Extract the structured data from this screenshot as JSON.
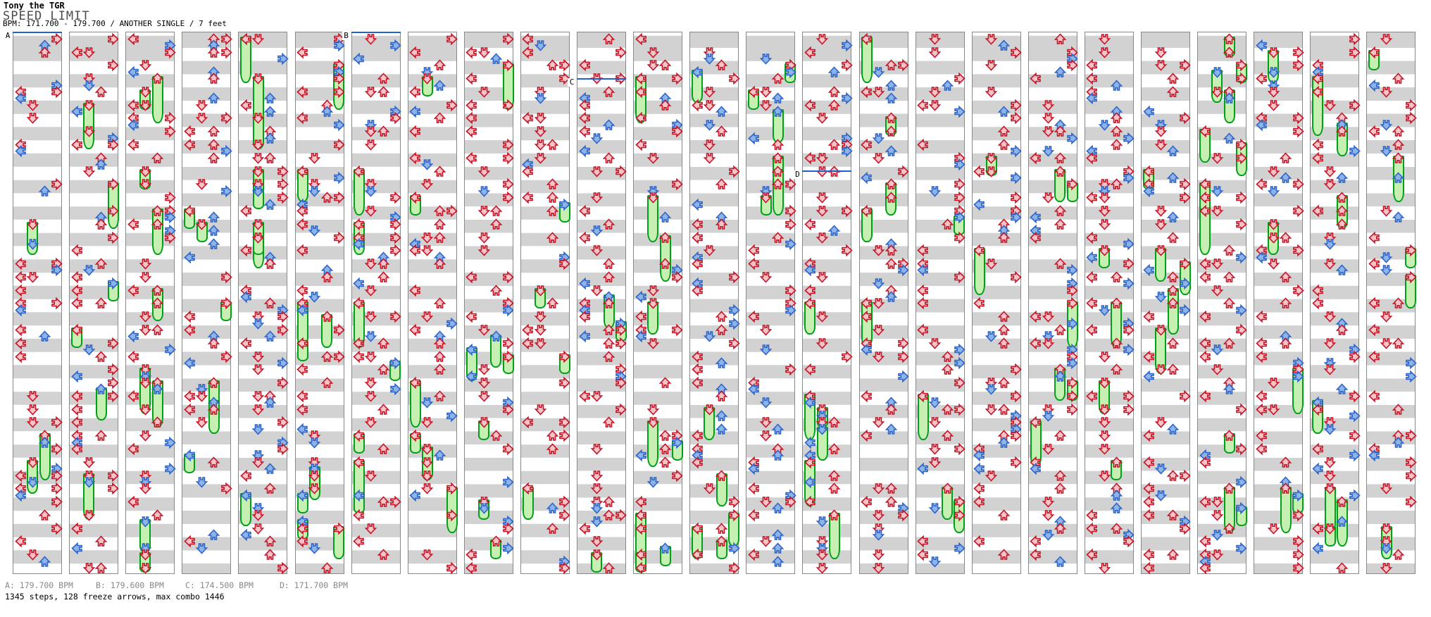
{
  "header": {
    "author": "Tony the TGR",
    "title": "SPEED LIMIT",
    "bpm_line": "BPM: 171.700 - 179.700 / ANOTHER SINGLE / 7 feet"
  },
  "footer": {
    "bpm_markers": [
      {
        "label": "A: 179.700 BPM"
      },
      {
        "label": "B: 179.600 BPM"
      },
      {
        "label": "C: 174.500 BPM"
      },
      {
        "label": "D: 171.700 BPM"
      }
    ],
    "stats": "1345 steps, 128 freeze arrows, max combo 1446"
  },
  "chart": {
    "columns": 25,
    "rows_per_column": 41,
    "lanes": [
      "left",
      "down",
      "up",
      "right"
    ],
    "markers": [
      {
        "label": "A",
        "column": 0,
        "row": 0
      },
      {
        "label": "B",
        "column": 6,
        "row": 0
      },
      {
        "label": "C",
        "column": 10,
        "row": 3.5
      },
      {
        "label": "D",
        "column": 14,
        "row": 10.5
      }
    ],
    "stats": {
      "steps": 1345,
      "freeze_arrows": 128,
      "max_combo": 1446
    },
    "colors": {
      "quarter_border": "#c41425",
      "quarter_fill": "#f6c3c8",
      "eighth_border": "#2e64c8",
      "eighth_fill": "#8cb4e8",
      "freeze_border": "#00a018",
      "freeze_fill": "#c6f0b2",
      "stripe": "#d2d2d2",
      "panel_border": "#888888",
      "marker_line": "#2060cc"
    },
    "pattern": {
      "seed": 1446,
      "quarter_density": 0.82,
      "jump_chance": 0.17,
      "eighth_density": 0.34,
      "freeze_chance": 0.16,
      "max_freeze_rows": 3
    }
  }
}
